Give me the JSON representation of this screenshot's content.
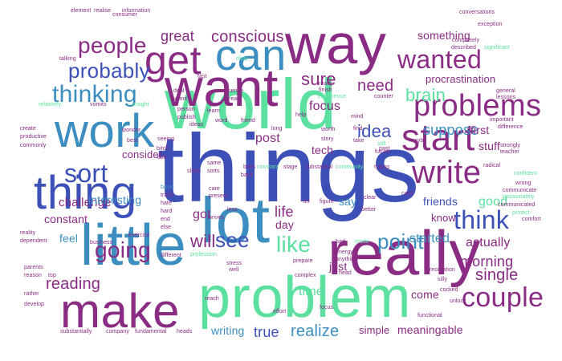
{
  "palette": {
    "green": "#5be0a0",
    "purple": "#8a2b84",
    "blue": "#3d50b8",
    "teal": "#3c8ec0"
  },
  "words": [
    {
      "text": "things",
      "color": "blue"
    },
    {
      "text": "world",
      "color": "green"
    },
    {
      "text": "lot",
      "color": "teal"
    },
    {
      "text": "really",
      "color": "purple"
    },
    {
      "text": "problem",
      "color": "green"
    },
    {
      "text": "little",
      "color": "teal"
    },
    {
      "text": "want",
      "color": "purple"
    },
    {
      "text": "way",
      "color": "purple"
    },
    {
      "text": "make",
      "color": "purple"
    },
    {
      "text": "work",
      "color": "teal"
    },
    {
      "text": "thing",
      "color": "blue"
    },
    {
      "text": "can",
      "color": "teal"
    },
    {
      "text": "get",
      "color": "purple"
    },
    {
      "text": "start",
      "color": "purple"
    },
    {
      "text": "problems",
      "color": "purple"
    },
    {
      "text": "write",
      "color": "purple"
    },
    {
      "text": "wanted",
      "color": "purple"
    },
    {
      "text": "sort",
      "color": "blue"
    },
    {
      "text": "thinking",
      "color": "teal"
    },
    {
      "text": "probably",
      "color": "blue"
    },
    {
      "text": "people",
      "color": "purple"
    },
    {
      "text": "think",
      "color": "blue"
    },
    {
      "text": "couple",
      "color": "purple"
    },
    {
      "text": "going",
      "color": "purple"
    },
    {
      "text": "see",
      "color": "blue"
    },
    {
      "text": "like",
      "color": "green"
    },
    {
      "text": "point",
      "color": "teal"
    },
    {
      "text": "conscious",
      "color": "purple"
    },
    {
      "text": "great",
      "color": "purple"
    },
    {
      "text": "sure",
      "color": "purple"
    },
    {
      "text": "need",
      "color": "purple"
    },
    {
      "text": "idea",
      "color": "blue"
    },
    {
      "text": "brain",
      "color": "green"
    },
    {
      "text": "suppose",
      "color": "teal"
    },
    {
      "text": "reading",
      "color": "purple"
    },
    {
      "text": "single",
      "color": "purple"
    },
    {
      "text": "realize",
      "color": "teal"
    },
    {
      "text": "true",
      "color": "blue"
    },
    {
      "text": "will",
      "color": "purple"
    },
    {
      "text": "morning",
      "color": "purple"
    },
    {
      "text": "actually",
      "color": "purple"
    },
    {
      "text": "started",
      "color": "teal"
    },
    {
      "text": "procrastination",
      "color": "purple"
    },
    {
      "text": "something",
      "color": "purple"
    },
    {
      "text": "first",
      "color": "purple"
    },
    {
      "text": "challenge",
      "color": "purple"
    },
    {
      "text": "consider",
      "color": "purple"
    },
    {
      "text": "constant",
      "color": "purple"
    },
    {
      "text": "interesting",
      "color": "teal"
    },
    {
      "text": "feel",
      "color": "teal"
    },
    {
      "text": "life",
      "color": "purple"
    },
    {
      "text": "got",
      "color": "purple"
    },
    {
      "text": "say",
      "color": "teal"
    },
    {
      "text": "friends",
      "color": "blue"
    },
    {
      "text": "good",
      "color": "green"
    },
    {
      "text": "focus",
      "color": "purple"
    },
    {
      "text": "post",
      "color": "purple"
    },
    {
      "text": "tech",
      "color": "purple"
    },
    {
      "text": "day",
      "color": "purple"
    },
    {
      "text": "time",
      "color": "green"
    },
    {
      "text": "come",
      "color": "purple"
    },
    {
      "text": "writing",
      "color": "teal"
    },
    {
      "text": "simple",
      "color": "purple"
    },
    {
      "text": "meaningable",
      "color": "purple"
    },
    {
      "text": "just",
      "color": "purple"
    },
    {
      "text": "know",
      "color": "purple"
    },
    {
      "text": "stuff",
      "color": "purple"
    },
    {
      "text": "element",
      "color": "purple"
    },
    {
      "text": "realise",
      "color": "purple"
    },
    {
      "text": "information",
      "color": "purple"
    },
    {
      "text": "conversations",
      "color": "purple"
    },
    {
      "text": "completely",
      "color": "purple"
    },
    {
      "text": "exception",
      "color": "purple"
    },
    {
      "text": "consumer",
      "color": "purple"
    },
    {
      "text": "talking",
      "color": "purple"
    },
    {
      "text": "described",
      "color": "purple"
    },
    {
      "text": "significant",
      "color": "green"
    },
    {
      "text": "general",
      "color": "purple"
    },
    {
      "text": "lessons",
      "color": "purple"
    },
    {
      "text": "relatively",
      "color": "green"
    },
    {
      "text": "vomits",
      "color": "purple"
    },
    {
      "text": "insight",
      "color": "green"
    },
    {
      "text": "ready",
      "color": "purple"
    },
    {
      "text": "finish",
      "color": "purple"
    },
    {
      "text": "experience",
      "color": "green"
    },
    {
      "text": "counter",
      "color": "purple"
    },
    {
      "text": "mind",
      "color": "purple"
    },
    {
      "text": "important",
      "color": "purple"
    },
    {
      "text": "difference",
      "color": "purple"
    },
    {
      "text": "strongly",
      "color": "purple"
    },
    {
      "text": "teacher",
      "color": "purple"
    },
    {
      "text": "maybe",
      "color": "purple"
    },
    {
      "text": "future",
      "color": "purple"
    },
    {
      "text": "still",
      "color": "green"
    },
    {
      "text": "create",
      "color": "purple"
    },
    {
      "text": "productive",
      "color": "purple"
    },
    {
      "text": "commonly",
      "color": "purple"
    },
    {
      "text": "wonder",
      "color": "purple"
    },
    {
      "text": "best",
      "color": "purple"
    },
    {
      "text": "radical",
      "color": "purple"
    },
    {
      "text": "confident",
      "color": "green"
    },
    {
      "text": "wrong",
      "color": "purple"
    },
    {
      "text": "communicate",
      "color": "purple"
    },
    {
      "text": "passionately",
      "color": "green"
    },
    {
      "text": "communicated",
      "color": "purple"
    },
    {
      "text": "protect",
      "color": "green"
    },
    {
      "text": "comfort",
      "color": "purple"
    },
    {
      "text": "reality",
      "color": "purple"
    },
    {
      "text": "dependent",
      "color": "purple"
    },
    {
      "text": "business",
      "color": "purple"
    },
    {
      "text": "exercise",
      "color": "purple"
    },
    {
      "text": "parents",
      "color": "purple"
    },
    {
      "text": "reason",
      "color": "purple"
    },
    {
      "text": "top",
      "color": "purple"
    },
    {
      "text": "rather",
      "color": "purple"
    },
    {
      "text": "develop",
      "color": "purple"
    },
    {
      "text": "substantially",
      "color": "purple"
    },
    {
      "text": "company",
      "color": "purple"
    },
    {
      "text": "fundamental",
      "color": "purple"
    },
    {
      "text": "heads",
      "color": "purple"
    },
    {
      "text": "recreation",
      "color": "purple"
    },
    {
      "text": "silly",
      "color": "purple"
    },
    {
      "text": "cocked",
      "color": "purple"
    },
    {
      "text": "unlock",
      "color": "purple"
    },
    {
      "text": "functional",
      "color": "purple"
    },
    {
      "text": "prepare",
      "color": "purple"
    },
    {
      "text": "complex",
      "color": "purple"
    },
    {
      "text": "effort",
      "color": "purple"
    },
    {
      "text": "focus",
      "color": "purple"
    },
    {
      "text": "reach",
      "color": "purple"
    },
    {
      "text": "stress",
      "color": "purple"
    },
    {
      "text": "well",
      "color": "purple"
    },
    {
      "text": "different",
      "color": "purple"
    },
    {
      "text": "profession",
      "color": "green"
    },
    {
      "text": "energy",
      "color": "purple"
    },
    {
      "text": "anything",
      "color": "purple"
    },
    {
      "text": "head",
      "color": "purple"
    },
    {
      "text": "bad",
      "color": "purple"
    },
    {
      "text": "mode",
      "color": "green"
    },
    {
      "text": "clear",
      "color": "purple"
    },
    {
      "text": "better",
      "color": "purple"
    },
    {
      "text": "case",
      "color": "purple"
    },
    {
      "text": "substantial",
      "color": "purple"
    },
    {
      "text": "community",
      "color": "green"
    },
    {
      "text": "typing",
      "color": "purple"
    },
    {
      "text": "story",
      "color": "purple"
    },
    {
      "text": "worth",
      "color": "purple"
    },
    {
      "text": "figure",
      "color": "purple"
    },
    {
      "text": "let",
      "color": "purple"
    },
    {
      "text": "take",
      "color": "purple"
    },
    {
      "text": "find",
      "color": "purple"
    },
    {
      "text": "long",
      "color": "purple"
    },
    {
      "text": "past",
      "color": "purple"
    },
    {
      "text": "fast",
      "color": "purple"
    },
    {
      "text": "sense",
      "color": "purple"
    },
    {
      "text": "deal",
      "color": "purple"
    },
    {
      "text": "vomit",
      "color": "purple"
    },
    {
      "text": "person",
      "color": "purple"
    },
    {
      "text": "publish",
      "color": "purple"
    },
    {
      "text": "ideas",
      "color": "purple"
    },
    {
      "text": "learn",
      "color": "purple"
    },
    {
      "text": "word",
      "color": "purple"
    },
    {
      "text": "read",
      "color": "purple"
    },
    {
      "text": "friend",
      "color": "purple"
    },
    {
      "text": "help",
      "color": "purple"
    },
    {
      "text": "okay",
      "color": "green"
    },
    {
      "text": "seeing",
      "color": "purple"
    },
    {
      "text": "bitch",
      "color": "purple"
    },
    {
      "text": "talk",
      "color": "purple"
    },
    {
      "text": "basic",
      "color": "teal"
    },
    {
      "text": "trash",
      "color": "purple"
    },
    {
      "text": "hate",
      "color": "purple"
    },
    {
      "text": "hard",
      "color": "purple"
    },
    {
      "text": "end",
      "color": "purple"
    },
    {
      "text": "else",
      "color": "purple"
    },
    {
      "text": "care",
      "color": "purple"
    },
    {
      "text": "present",
      "color": "purple"
    },
    {
      "text": "sleep",
      "color": "purple"
    },
    {
      "text": "same",
      "color": "purple"
    },
    {
      "text": "sorts",
      "color": "purple"
    },
    {
      "text": "boss",
      "color": "purple"
    },
    {
      "text": "constant",
      "color": "green"
    },
    {
      "text": "stage",
      "color": "purple"
    },
    {
      "text": "back",
      "color": "purple"
    },
    {
      "text": "less",
      "color": "purple"
    },
    {
      "text": "thrives",
      "color": "purple"
    }
  ]
}
